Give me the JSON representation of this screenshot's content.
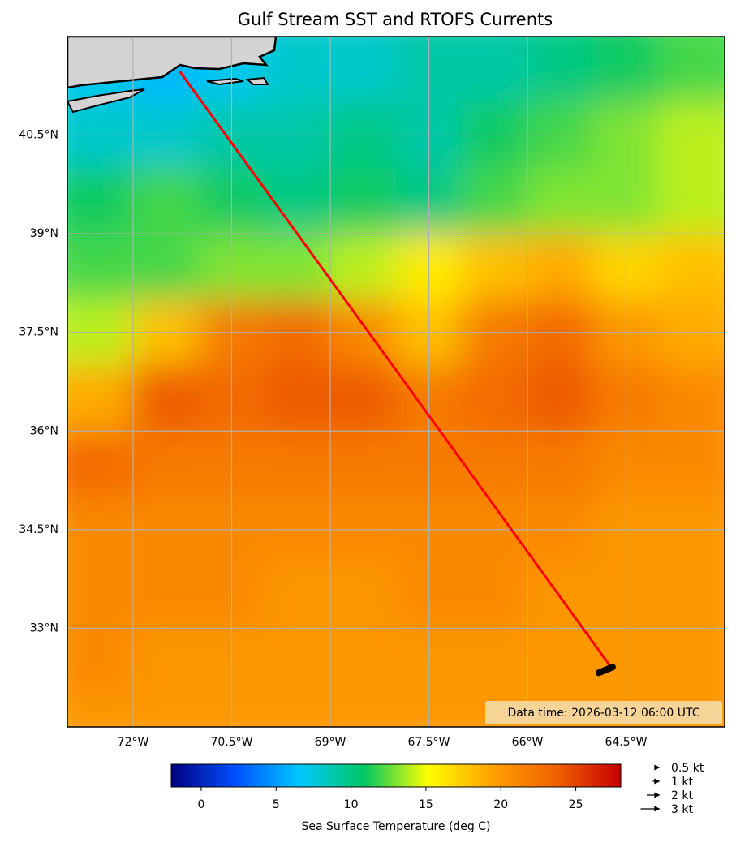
{
  "map": {
    "title": "Gulf Stream SST and RTOFS Currents",
    "xlim": [
      -73,
      -63
    ],
    "ylim": [
      31.5,
      42
    ],
    "xticks": [
      {
        "value": -72,
        "label": "72°W"
      },
      {
        "value": -70.5,
        "label": "70.5°W"
      },
      {
        "value": -69,
        "label": "69°W"
      },
      {
        "value": -67.5,
        "label": "67.5°W"
      },
      {
        "value": -66,
        "label": "66°W"
      },
      {
        "value": -64.5,
        "label": "64.5°W"
      }
    ],
    "yticks": [
      {
        "value": 40.5,
        "label": "40.5°N"
      },
      {
        "value": 39,
        "label": "39°N"
      },
      {
        "value": 37.5,
        "label": "37.5°N"
      },
      {
        "value": 36,
        "label": "36°N"
      },
      {
        "value": 34.5,
        "label": "34.5°N"
      },
      {
        "value": 33,
        "label": "33°N"
      }
    ],
    "grid": true,
    "sst": {
      "lon_edges": [
        -73,
        -72,
        -71,
        -70,
        -69,
        -68,
        -67,
        -66,
        -65,
        -64,
        -63
      ],
      "lat_edges": [
        42,
        41,
        40,
        39,
        38,
        37,
        36,
        35,
        34,
        33,
        32,
        31.5
      ],
      "values": [
        [
          7,
          6,
          7,
          8,
          8,
          9,
          9,
          10,
          11,
          12
        ],
        [
          8,
          8,
          9,
          9,
          10,
          9,
          11,
          12,
          13,
          14
        ],
        [
          11,
          12,
          11,
          10,
          11,
          10,
          12,
          13,
          13,
          14
        ],
        [
          12,
          12,
          13,
          13,
          14,
          16,
          18,
          19,
          17,
          18
        ],
        [
          14,
          18,
          22,
          23,
          21,
          18,
          22,
          23,
          20,
          19
        ],
        [
          19,
          24,
          23,
          24,
          24,
          22,
          23,
          24,
          22,
          21
        ],
        [
          23,
          22,
          22,
          22,
          22,
          22,
          22,
          22,
          21,
          21
        ],
        [
          21,
          21,
          21,
          21,
          21,
          21,
          21,
          21,
          20,
          20
        ],
        [
          21,
          21,
          21,
          20,
          20,
          21,
          21,
          20,
          20,
          20
        ],
        [
          21,
          20,
          20,
          20,
          20,
          20,
          20,
          20,
          20,
          20
        ],
        [
          20,
          20,
          20,
          20,
          20,
          20,
          20,
          20,
          20,
          20
        ]
      ]
    },
    "route": {
      "color": "#ff0000",
      "lon": [
        -71.29,
        -64.73
      ],
      "lat": [
        41.47,
        32.41
      ]
    },
    "annotation": "Data time: 2026-03-12 06:00 UTC"
  },
  "colorbar": {
    "label": "Sea Surface Temperature (deg C)",
    "lim": [
      -2,
      28
    ],
    "ticks": [
      0,
      5,
      10,
      15,
      20,
      25
    ],
    "colors": [
      "#000080",
      "#0050ff",
      "#00c8ff",
      "#00c864",
      "#ffff00",
      "#ffa000",
      "#f06000",
      "#c80000"
    ]
  },
  "quiver_key": [
    {
      "value": 0.5,
      "label": "0.5 kt"
    },
    {
      "value": 1,
      "label": "1 kt"
    },
    {
      "value": 2,
      "label": "2 kt"
    },
    {
      "value": 3,
      "label": "3 kt"
    }
  ]
}
